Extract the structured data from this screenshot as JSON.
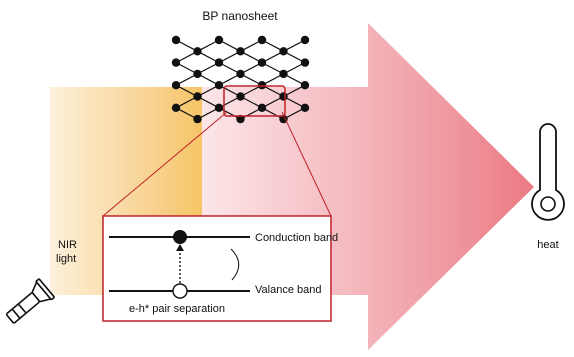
{
  "title": "BP nanosheet",
  "light_label_line1": "NIR",
  "light_label_line2": "light",
  "conduction_band": "Conduction band",
  "valance_band": "Valance band",
  "pair_label": "e-h* pair separation",
  "heat_label": "heat",
  "colors": {
    "light_beam": "#f7c873",
    "arrow_start": "#fbe3e6",
    "arrow_end": "#ec7a83",
    "highlight": "#c0202a",
    "lattice": "#111111"
  },
  "lattice": {
    "columns": 7,
    "rows": 8
  }
}
